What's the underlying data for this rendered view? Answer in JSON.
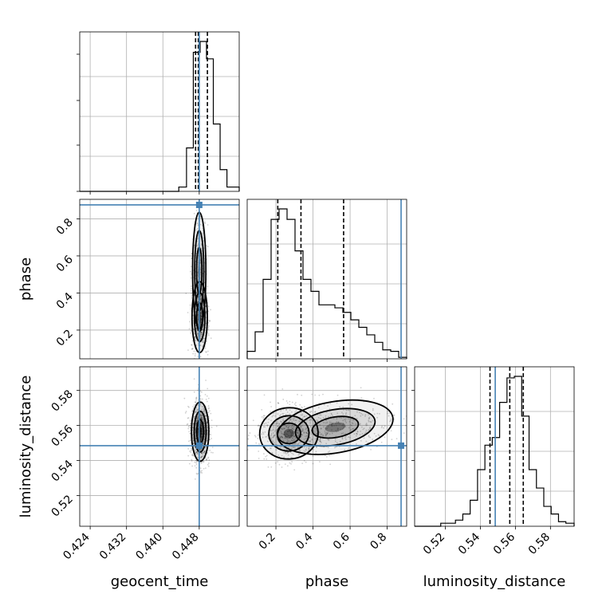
{
  "chart_data": {
    "type": "corner",
    "parameters": [
      "geocent_time",
      "phase",
      "luminosity_distance"
    ],
    "labels": {
      "geocent_time": "geocent_time",
      "phase": "phase",
      "luminosity_distance": "luminosity_distance"
    },
    "ranges": {
      "geocent_time": [
        0.4217,
        0.4568
      ],
      "phase": [
        0.045,
        0.905
      ],
      "luminosity_distance": [
        0.5025,
        0.5935
      ]
    },
    "ticks": {
      "geocent_time": [
        "0.424",
        "0.432",
        "0.440",
        "0.448"
      ],
      "phase": [
        "0.2",
        "0.4",
        "0.6",
        "0.8"
      ],
      "luminosity_distance": [
        "0.52",
        "0.54",
        "0.56",
        "0.58"
      ]
    },
    "truths": {
      "geocent_time": 0.448,
      "phase": 0.875,
      "luminosity_distance": 0.5485
    },
    "quantiles": {
      "geocent_time": [
        0.4472,
        0.4478,
        0.4498
      ],
      "phase": [
        0.21,
        0.335,
        0.565
      ],
      "luminosity_distance": [
        0.5455,
        0.5568,
        0.5645
      ]
    },
    "histograms": {
      "geocent_time": {
        "edges": [
          0.4217,
          0.4435,
          0.4452,
          0.4467,
          0.4482,
          0.4496,
          0.4511,
          0.4526,
          0.4541,
          0.4568
        ],
        "counts": [
          0.0,
          0.02,
          0.2,
          0.64,
          0.69,
          0.61,
          0.31,
          0.1,
          0.02
        ]
      },
      "phase": {
        "edges": [
          0.045,
          0.088,
          0.131,
          0.174,
          0.217,
          0.26,
          0.303,
          0.346,
          0.389,
          0.432,
          0.475,
          0.518,
          0.561,
          0.604,
          0.647,
          0.69,
          0.733,
          0.776,
          0.819,
          0.862,
          0.905
        ],
        "counts": [
          0.05,
          0.18,
          0.53,
          0.93,
          1.0,
          0.93,
          0.72,
          0.53,
          0.45,
          0.36,
          0.36,
          0.34,
          0.31,
          0.26,
          0.21,
          0.16,
          0.11,
          0.06,
          0.05,
          0.01
        ]
      },
      "luminosity_distance": {
        "edges": [
          0.5025,
          0.5174,
          0.5216,
          0.5258,
          0.53,
          0.5342,
          0.5384,
          0.5426,
          0.5468,
          0.551,
          0.5552,
          0.5594,
          0.5636,
          0.5678,
          0.572,
          0.5762,
          0.5804,
          0.5846,
          0.5888,
          0.5935
        ],
        "counts": [
          0.0,
          0.02,
          0.02,
          0.04,
          0.08,
          0.17,
          0.37,
          0.53,
          0.58,
          0.81,
          0.97,
          0.98,
          0.72,
          0.37,
          0.25,
          0.13,
          0.08,
          0.03,
          0.02
        ]
      }
    },
    "contour_levels": 3,
    "grid": true
  }
}
